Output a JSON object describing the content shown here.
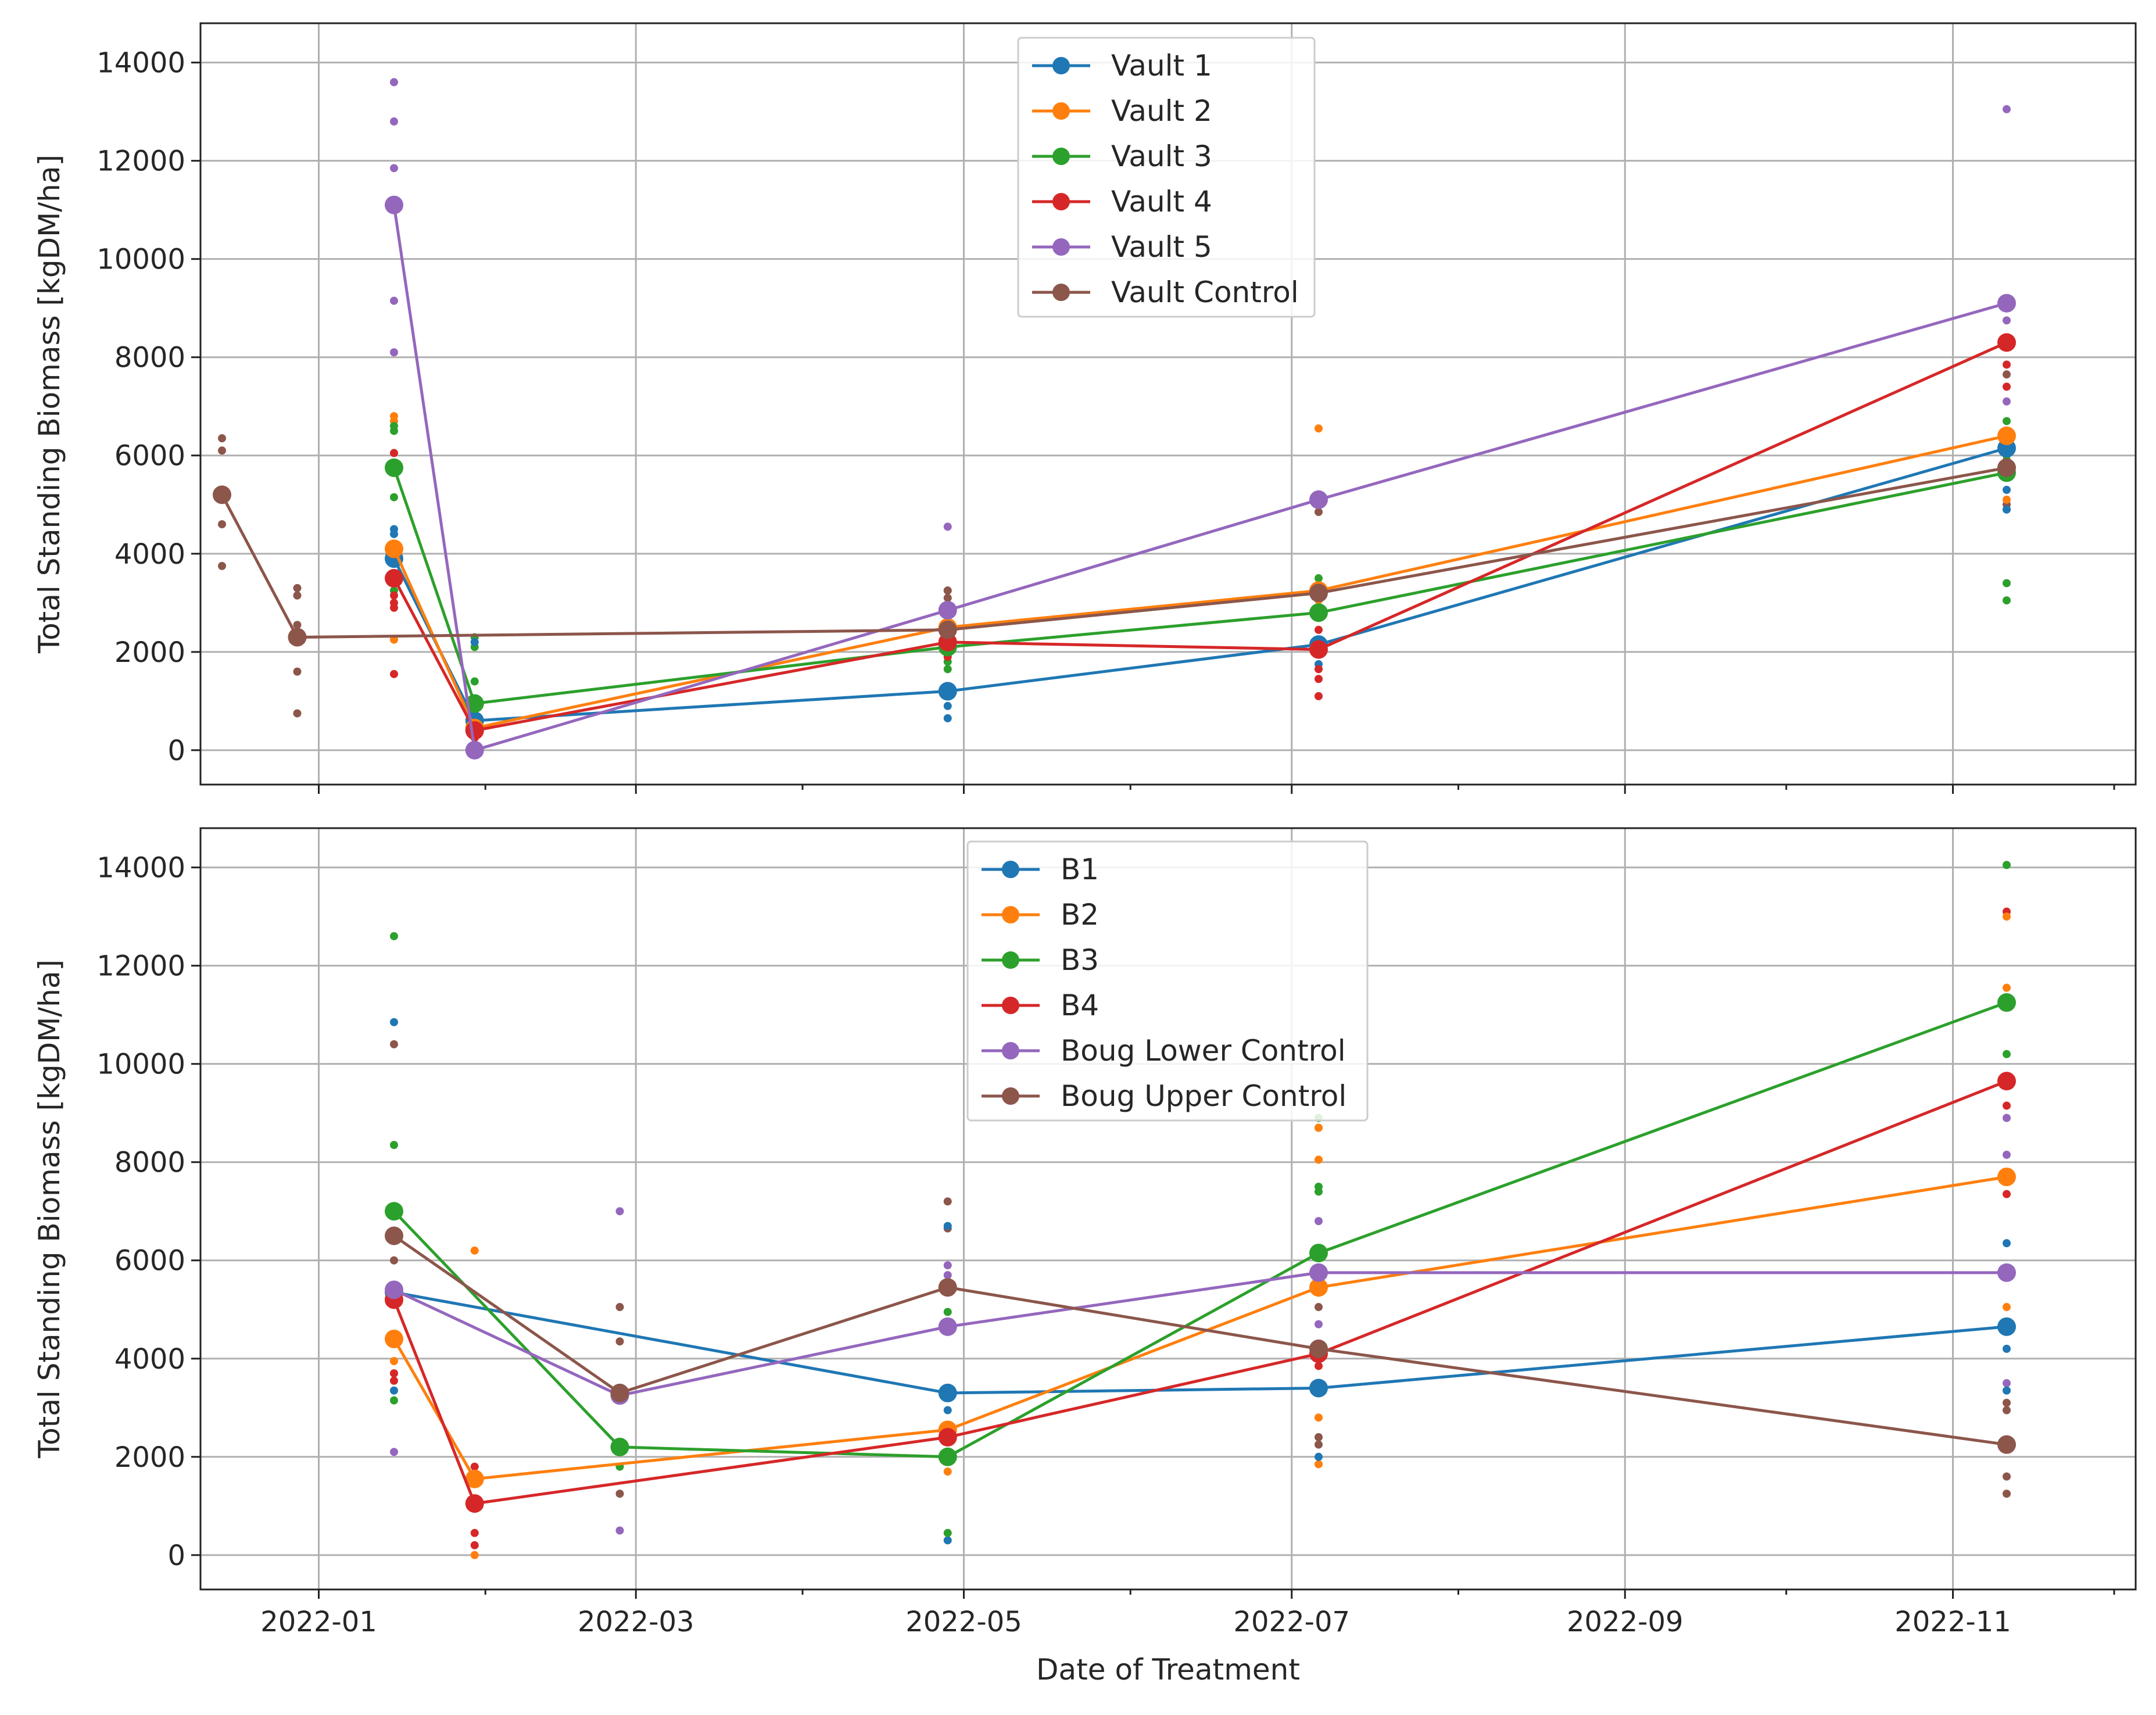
{
  "colors": {
    "blue": "#1f77b4",
    "orange": "#ff7f0e",
    "green": "#2ca02c",
    "red": "#d62728",
    "purple": "#9467bd",
    "brown": "#8c564b"
  },
  "chart_data": [
    {
      "type": "line",
      "panel": "top",
      "title": "",
      "xlabel": "",
      "ylabel": "Total Standing Biomass [kgDM/ha]",
      "x_is_date": true,
      "xlim": [
        "2021-12-10",
        "2022-12-05"
      ],
      "ylim": [
        -700,
        14800
      ],
      "xticks": [
        {
          "date": "2022-01-01",
          "label": "2022-01"
        },
        {
          "date": "2022-03-01",
          "label": "2022-03"
        },
        {
          "date": "2022-05-01",
          "label": "2022-05"
        },
        {
          "date": "2022-07-01",
          "label": "2022-07"
        },
        {
          "date": "2022-09-01",
          "label": "2022-09"
        },
        {
          "date": "2022-11-01",
          "label": "2022-11"
        }
      ],
      "yticks": [
        0,
        2000,
        4000,
        6000,
        8000,
        10000,
        12000,
        14000
      ],
      "grid": true,
      "legend_position": "upper center",
      "series": [
        {
          "name": "Vault 1",
          "color": "#1f77b4",
          "x": [
            "2022-01-15",
            "2022-01-30",
            "2022-04-28",
            "2022-07-06",
            "2022-11-11"
          ],
          "y": [
            3900,
            600,
            1200,
            2150,
            6150
          ]
        },
        {
          "name": "Vault 2",
          "color": "#ff7f0e",
          "x": [
            "2022-01-15",
            "2022-01-30",
            "2022-04-28",
            "2022-07-06",
            "2022-11-11"
          ],
          "y": [
            4100,
            450,
            2500,
            3250,
            6400
          ]
        },
        {
          "name": "Vault 3",
          "color": "#2ca02c",
          "x": [
            "2022-01-15",
            "2022-01-30",
            "2022-04-28",
            "2022-07-06",
            "2022-11-11"
          ],
          "y": [
            5750,
            950,
            2100,
            2800,
            5650
          ]
        },
        {
          "name": "Vault 4",
          "color": "#d62728",
          "x": [
            "2022-01-15",
            "2022-01-30",
            "2022-04-28",
            "2022-07-06",
            "2022-11-11"
          ],
          "y": [
            3500,
            400,
            2200,
            2050,
            8300
          ]
        },
        {
          "name": "Vault 5",
          "color": "#9467bd",
          "x": [
            "2022-01-15",
            "2022-01-30",
            "2022-04-28",
            "2022-07-06",
            "2022-11-11"
          ],
          "y": [
            11100,
            0,
            2850,
            5100,
            9100
          ]
        },
        {
          "name": "Vault Control",
          "color": "#8c564b",
          "x": [
            "2021-12-14",
            "2021-12-28",
            "2022-04-28",
            "2022-07-06",
            "2022-11-11"
          ],
          "y": [
            5200,
            2300,
            2450,
            3200,
            5750
          ]
        }
      ],
      "scatter": [
        {
          "color": "#8c564b",
          "x": "2021-12-14",
          "y": [
            6350,
            6100,
            4600,
            3750
          ]
        },
        {
          "color": "#8c564b",
          "x": "2021-12-28",
          "y": [
            3300,
            3150,
            2550,
            2350,
            1600,
            750
          ]
        },
        {
          "color": "#9467bd",
          "x": "2022-01-15",
          "y": [
            13600,
            12800,
            11850,
            9150,
            8100
          ]
        },
        {
          "color": "#ff7f0e",
          "x": "2022-01-15",
          "y": [
            6800,
            6700,
            3900,
            2250
          ]
        },
        {
          "color": "#2ca02c",
          "x": "2022-01-15",
          "y": [
            6600,
            6500,
            5150,
            3250
          ]
        },
        {
          "color": "#1f77b4",
          "x": "2022-01-15",
          "y": [
            4500,
            4400,
            3800
          ]
        },
        {
          "color": "#d62728",
          "x": "2022-01-15",
          "y": [
            6050,
            3150,
            3000,
            2900,
            1550
          ]
        },
        {
          "color": "#2ca02c",
          "x": "2022-01-30",
          "y": [
            2300,
            2100,
            1400,
            350
          ]
        },
        {
          "color": "#1f77b4",
          "x": "2022-01-30",
          "y": [
            2200,
            900
          ]
        },
        {
          "color": "#d62728",
          "x": "2022-01-30",
          "y": [
            600,
            250
          ]
        },
        {
          "color": "#9467bd",
          "x": "2022-04-28",
          "y": [
            4550,
            3250
          ]
        },
        {
          "color": "#8c564b",
          "x": "2022-04-28",
          "y": [
            3250,
            3100
          ]
        },
        {
          "color": "#ff7f0e",
          "x": "2022-04-28",
          "y": [
            2750,
            2000
          ]
        },
        {
          "color": "#2ca02c",
          "x": "2022-04-28",
          "y": [
            1800,
            1650
          ]
        },
        {
          "color": "#d62728",
          "x": "2022-04-28",
          "y": [
            2350,
            1900
          ]
        },
        {
          "color": "#1f77b4",
          "x": "2022-04-28",
          "y": [
            900,
            650
          ]
        },
        {
          "color": "#ff7f0e",
          "x": "2022-07-06",
          "y": [
            6550,
            3050
          ]
        },
        {
          "color": "#8c564b",
          "x": "2022-07-06",
          "y": [
            4850
          ]
        },
        {
          "color": "#2ca02c",
          "x": "2022-07-06",
          "y": [
            3500,
            3350,
            2750
          ]
        },
        {
          "color": "#1f77b4",
          "x": "2022-07-06",
          "y": [
            1950,
            1750
          ]
        },
        {
          "color": "#d62728",
          "x": "2022-07-06",
          "y": [
            2450,
            1650,
            1450,
            1100
          ]
        },
        {
          "color": "#9467bd",
          "x": "2022-11-11",
          "y": [
            13050,
            8750,
            8200,
            7100
          ]
        },
        {
          "color": "#d62728",
          "x": "2022-11-11",
          "y": [
            7850,
            7400,
            6050,
            5900
          ]
        },
        {
          "color": "#8c564b",
          "x": "2022-11-11",
          "y": [
            7650,
            5000,
            4900
          ]
        },
        {
          "color": "#2ca02c",
          "x": "2022-11-11",
          "y": [
            6700,
            6000,
            3400,
            3050
          ]
        },
        {
          "color": "#1f77b4",
          "x": "2022-11-11",
          "y": [
            5600,
            5300,
            4900
          ]
        },
        {
          "color": "#ff7f0e",
          "x": "2022-11-11",
          "y": [
            6500,
            5100
          ]
        }
      ]
    },
    {
      "type": "line",
      "panel": "bottom",
      "title": "",
      "xlabel": "Date of Treatment",
      "ylabel": "Total Standing Biomass [kgDM/ha]",
      "x_is_date": true,
      "xlim": [
        "2021-12-10",
        "2022-12-05"
      ],
      "ylim": [
        -700,
        14800
      ],
      "xticks": [
        {
          "date": "2022-01-01",
          "label": "2022-01"
        },
        {
          "date": "2022-03-01",
          "label": "2022-03"
        },
        {
          "date": "2022-05-01",
          "label": "2022-05"
        },
        {
          "date": "2022-07-01",
          "label": "2022-07"
        },
        {
          "date": "2022-09-01",
          "label": "2022-09"
        },
        {
          "date": "2022-11-01",
          "label": "2022-11"
        }
      ],
      "yticks": [
        0,
        2000,
        4000,
        6000,
        8000,
        10000,
        12000,
        14000
      ],
      "grid": true,
      "legend_position": "upper center",
      "series": [
        {
          "name": "B1",
          "color": "#1f77b4",
          "x": [
            "2022-01-15",
            "2022-04-28",
            "2022-07-06",
            "2022-11-11"
          ],
          "y": [
            5350,
            3300,
            3400,
            4650
          ]
        },
        {
          "name": "B2",
          "color": "#ff7f0e",
          "x": [
            "2022-01-15",
            "2022-01-30",
            "2022-04-28",
            "2022-07-06",
            "2022-11-11"
          ],
          "y": [
            4400,
            1550,
            2550,
            5450,
            7700
          ]
        },
        {
          "name": "B3",
          "color": "#2ca02c",
          "x": [
            "2022-01-15",
            "2022-02-26",
            "2022-04-28",
            "2022-07-06",
            "2022-11-11"
          ],
          "y": [
            7000,
            2200,
            2000,
            6150,
            11250
          ]
        },
        {
          "name": "B4",
          "color": "#d62728",
          "x": [
            "2022-01-15",
            "2022-01-30",
            "2022-04-28",
            "2022-07-06",
            "2022-11-11"
          ],
          "y": [
            5200,
            1050,
            2400,
            4100,
            9650
          ]
        },
        {
          "name": "Boug Lower Control",
          "color": "#9467bd",
          "x": [
            "2022-01-15",
            "2022-02-26",
            "2022-04-28",
            "2022-07-06",
            "2022-11-11"
          ],
          "y": [
            5400,
            3250,
            4650,
            5750,
            5750
          ]
        },
        {
          "name": "Boug Upper Control",
          "color": "#8c564b",
          "x": [
            "2022-01-15",
            "2022-02-26",
            "2022-04-28",
            "2022-07-06",
            "2022-11-11"
          ],
          "y": [
            6500,
            3300,
            5450,
            4200,
            2250
          ]
        }
      ],
      "scatter": [
        {
          "color": "#2ca02c",
          "x": "2022-01-15",
          "y": [
            12600,
            8350,
            3150
          ]
        },
        {
          "color": "#1f77b4",
          "x": "2022-01-15",
          "y": [
            10850,
            3350
          ]
        },
        {
          "color": "#8c564b",
          "x": "2022-01-15",
          "y": [
            10400,
            6000,
            5200
          ]
        },
        {
          "color": "#d62728",
          "x": "2022-01-15",
          "y": [
            3700,
            3550
          ]
        },
        {
          "color": "#ff7f0e",
          "x": "2022-01-15",
          "y": [
            3950
          ]
        },
        {
          "color": "#9467bd",
          "x": "2022-01-15",
          "y": [
            2100
          ]
        },
        {
          "color": "#ff7f0e",
          "x": "2022-01-30",
          "y": [
            6200,
            0
          ]
        },
        {
          "color": "#d62728",
          "x": "2022-01-30",
          "y": [
            1800,
            450,
            200
          ]
        },
        {
          "color": "#9467bd",
          "x": "2022-02-26",
          "y": [
            7000,
            500
          ]
        },
        {
          "color": "#8c564b",
          "x": "2022-02-26",
          "y": [
            5050,
            4350,
            1250
          ]
        },
        {
          "color": "#2ca02c",
          "x": "2022-02-26",
          "y": [
            1800
          ]
        },
        {
          "color": "#8c564b",
          "x": "2022-04-28",
          "y": [
            7200,
            6650
          ]
        },
        {
          "color": "#1f77b4",
          "x": "2022-04-28",
          "y": [
            6700,
            2950,
            300
          ]
        },
        {
          "color": "#9467bd",
          "x": "2022-04-28",
          "y": [
            5900,
            5700
          ]
        },
        {
          "color": "#2ca02c",
          "x": "2022-04-28",
          "y": [
            4950,
            450
          ]
        },
        {
          "color": "#ff7f0e",
          "x": "2022-04-28",
          "y": [
            1700
          ]
        },
        {
          "color": "#2ca02c",
          "x": "2022-07-06",
          "y": [
            8900,
            8700,
            7500,
            7400
          ]
        },
        {
          "color": "#ff7f0e",
          "x": "2022-07-06",
          "y": [
            8700,
            8050,
            2800,
            1850
          ]
        },
        {
          "color": "#9467bd",
          "x": "2022-07-06",
          "y": [
            6800,
            4700
          ]
        },
        {
          "color": "#8c564b",
          "x": "2022-07-06",
          "y": [
            5050,
            2400,
            2250
          ]
        },
        {
          "color": "#d62728",
          "x": "2022-07-06",
          "y": [
            3850
          ]
        },
        {
          "color": "#1f77b4",
          "x": "2022-07-06",
          "y": [
            2000
          ]
        },
        {
          "color": "#2ca02c",
          "x": "2022-11-11",
          "y": [
            14050,
            10200,
            7650
          ]
        },
        {
          "color": "#d62728",
          "x": "2022-11-11",
          "y": [
            13100,
            9150,
            7350
          ]
        },
        {
          "color": "#ff7f0e",
          "x": "2022-11-11",
          "y": [
            13000,
            11550,
            5050
          ]
        },
        {
          "color": "#9467bd",
          "x": "2022-11-11",
          "y": [
            8900,
            8150,
            3500
          ]
        },
        {
          "color": "#1f77b4",
          "x": "2022-11-11",
          "y": [
            6350,
            4200,
            3350
          ]
        },
        {
          "color": "#8c564b",
          "x": "2022-11-11",
          "y": [
            3100,
            2950,
            1600,
            1250
          ]
        }
      ]
    }
  ]
}
